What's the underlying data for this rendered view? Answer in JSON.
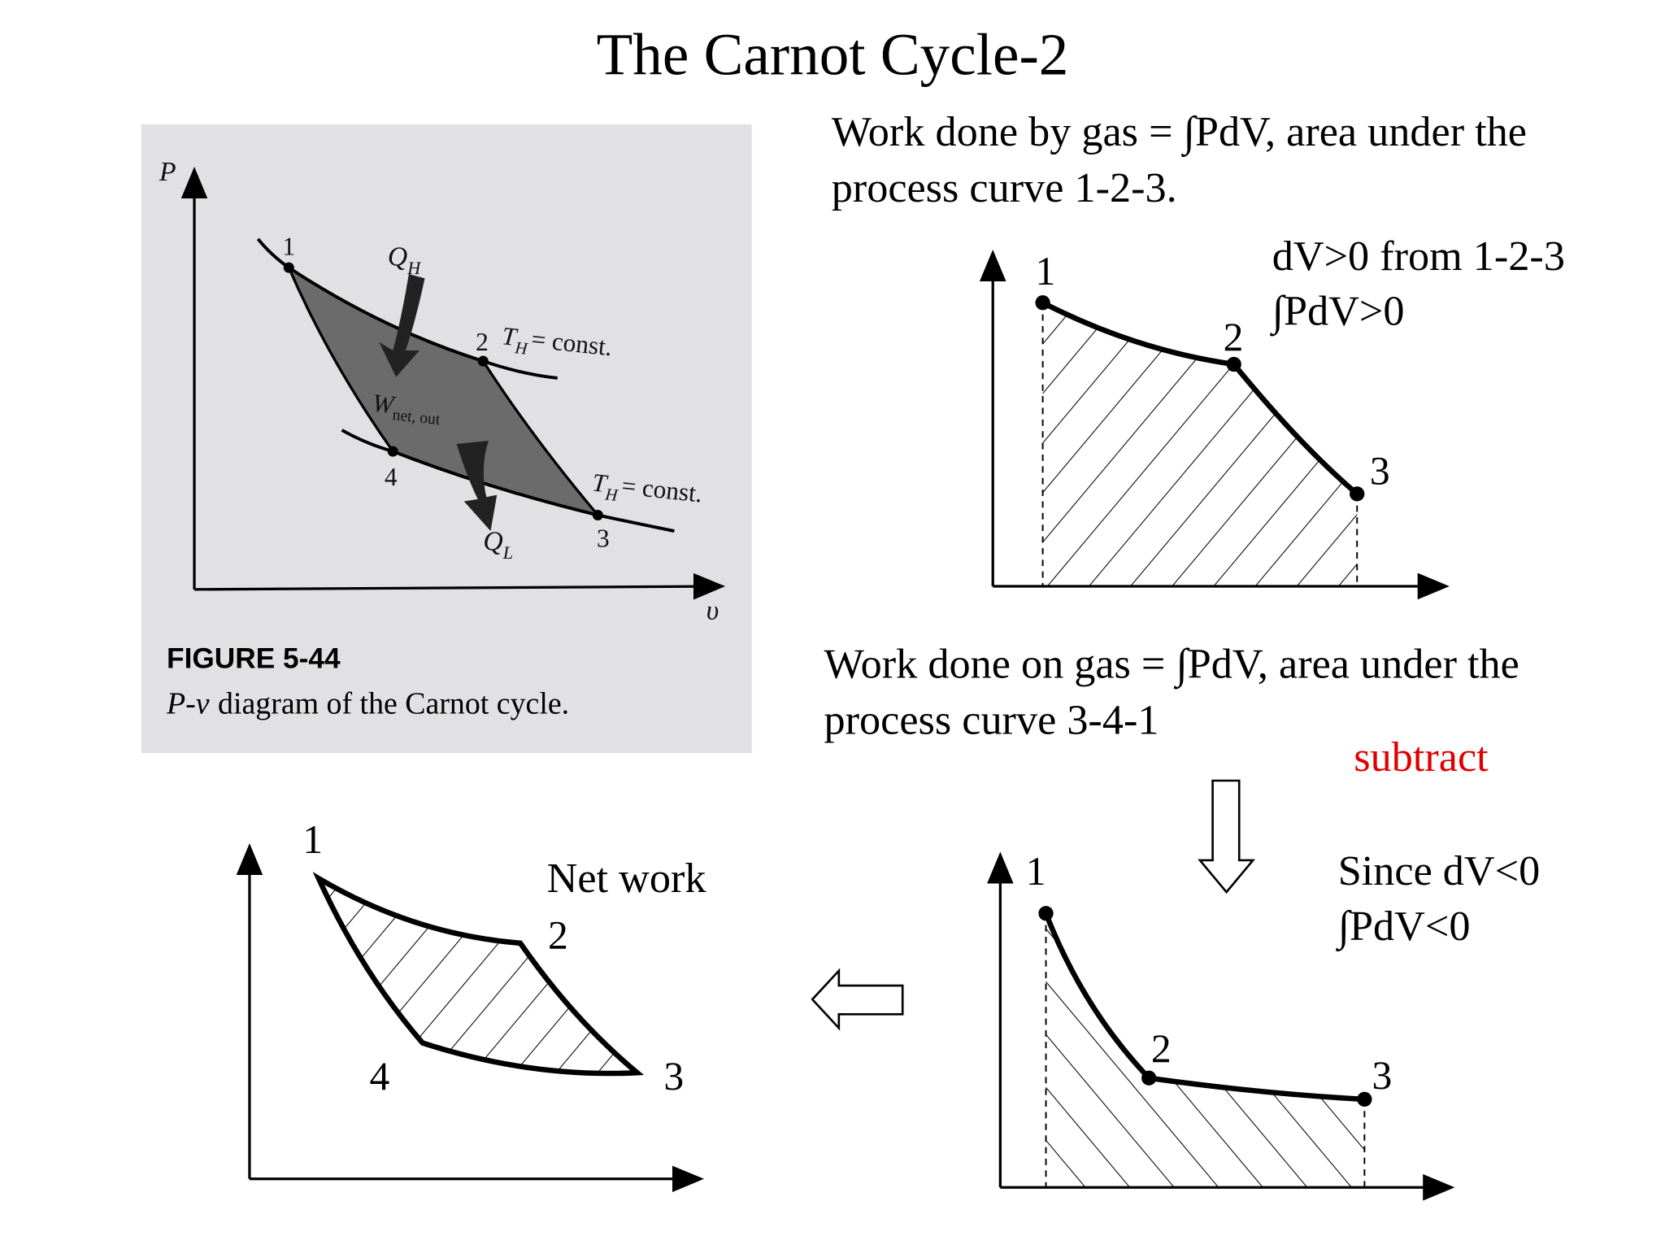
{
  "title": "The Carnot Cycle-2",
  "figure": {
    "axis_y": "P",
    "axis_x": "υ",
    "points": [
      "1",
      "2",
      "3",
      "4"
    ],
    "heat_in": {
      "symbol": "Q",
      "subscript": "H"
    },
    "isotherm_high": {
      "symbol": "T",
      "subscript": "H",
      "text": "= const."
    },
    "isotherm_low": {
      "symbol": "T",
      "subscript": "H",
      "text": "= const."
    },
    "work": {
      "symbol": "W",
      "subscript": "net, out"
    },
    "heat_out": {
      "symbol": "Q",
      "subscript": "L"
    },
    "caption_number": "FIGURE 5-44",
    "caption": {
      "italic": "P-v",
      "text": "diagram of the Carnot cycle."
    }
  },
  "expansion": {
    "lines": [
      "Work done by gas = ∫PdV, area under the",
      "process curve 1-2-3."
    ],
    "points": [
      "1",
      "2",
      "3"
    ],
    "notes": [
      "dV>0 from 1-2-3",
      "∫PdV>0"
    ]
  },
  "compression": {
    "lines": [
      "Work done on gas = ∫PdV, area under the",
      "process curve 3-4-1"
    ],
    "operation": "subtract",
    "points": [
      "1",
      "2",
      "3"
    ],
    "notes": [
      "Since dV<0",
      "∫PdV<0"
    ]
  },
  "net": {
    "label": "Net work",
    "points": [
      "1",
      "2",
      "3",
      "4"
    ]
  }
}
